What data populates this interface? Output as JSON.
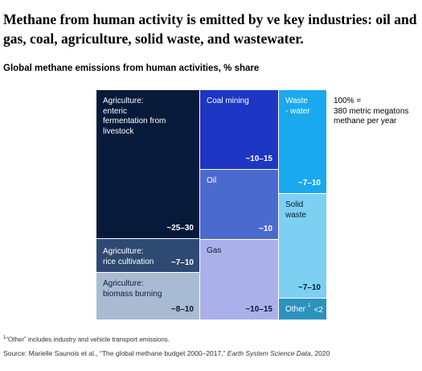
{
  "headline": "Methane from human activity is emitted by  ve key industries: oil and gas, coal, agriculture, solid waste, and wastewater.",
  "chart_data": {
    "type": "treemap",
    "title": "Global methane emissions from human activities, % share",
    "total_label": "100% =\n380 metric megatons\nmethane per year",
    "unit": "%",
    "cells": [
      {
        "key": "enteric",
        "label": "Agriculture:\nenteric\nfermentation  from\nlivestock",
        "value_label": "~25–30",
        "value_low": 25,
        "value_high": 30,
        "color": "#071a3a",
        "text_color": "#ffffff"
      },
      {
        "key": "rice",
        "label": "Agriculture:\nrice cultivation",
        "value_label": "~7–10",
        "value_low": 7,
        "value_high": 10,
        "color": "#2e4a72",
        "text_color": "#ffffff"
      },
      {
        "key": "biomass",
        "label": "Agriculture:\nbiomass burning",
        "value_label": "~8–10",
        "value_low": 8,
        "value_high": 10,
        "color": "#a9bbd2",
        "text_color": "#0a1a33"
      },
      {
        "key": "coal",
        "label": "Coal mining",
        "value_label": "~10–15",
        "value_low": 10,
        "value_high": 15,
        "color": "#1d36c4",
        "text_color": "#ffffff"
      },
      {
        "key": "oil",
        "label": "Oil",
        "value_label": "~10",
        "value_low": 10,
        "value_high": 10,
        "color": "#4b6ad0",
        "text_color": "#ffffff"
      },
      {
        "key": "gas",
        "label": "Gas",
        "value_label": "~10–15",
        "value_low": 10,
        "value_high": 15,
        "color": "#aab1ea",
        "text_color": "#0a1a33"
      },
      {
        "key": "wastewater",
        "label": "Waste\n- water",
        "value_label": "~7–10",
        "value_low": 7,
        "value_high": 10,
        "color": "#1aa9ee",
        "text_color": "#ffffff"
      },
      {
        "key": "solid",
        "label": "Solid\nwaste",
        "value_label": "~7–10",
        "value_low": 7,
        "value_high": 10,
        "color": "#7dd0f2",
        "text_color": "#0a1a33"
      },
      {
        "key": "other",
        "label": "Other",
        "label_sup": "1",
        "value_label": "<2",
        "value_low": 0,
        "value_high": 2,
        "color": "#2b92be",
        "text_color": "#ffffff"
      }
    ]
  },
  "footnote": {
    "marker": "1",
    "text": "“Other” includes industry and vehicle transport emissions."
  },
  "source": {
    "prefix": "Source: Marielle Saunois et al., “The global methane budget 2000–2017,” ",
    "journal": "Earth System Science Data",
    "suffix": ", 2020"
  }
}
